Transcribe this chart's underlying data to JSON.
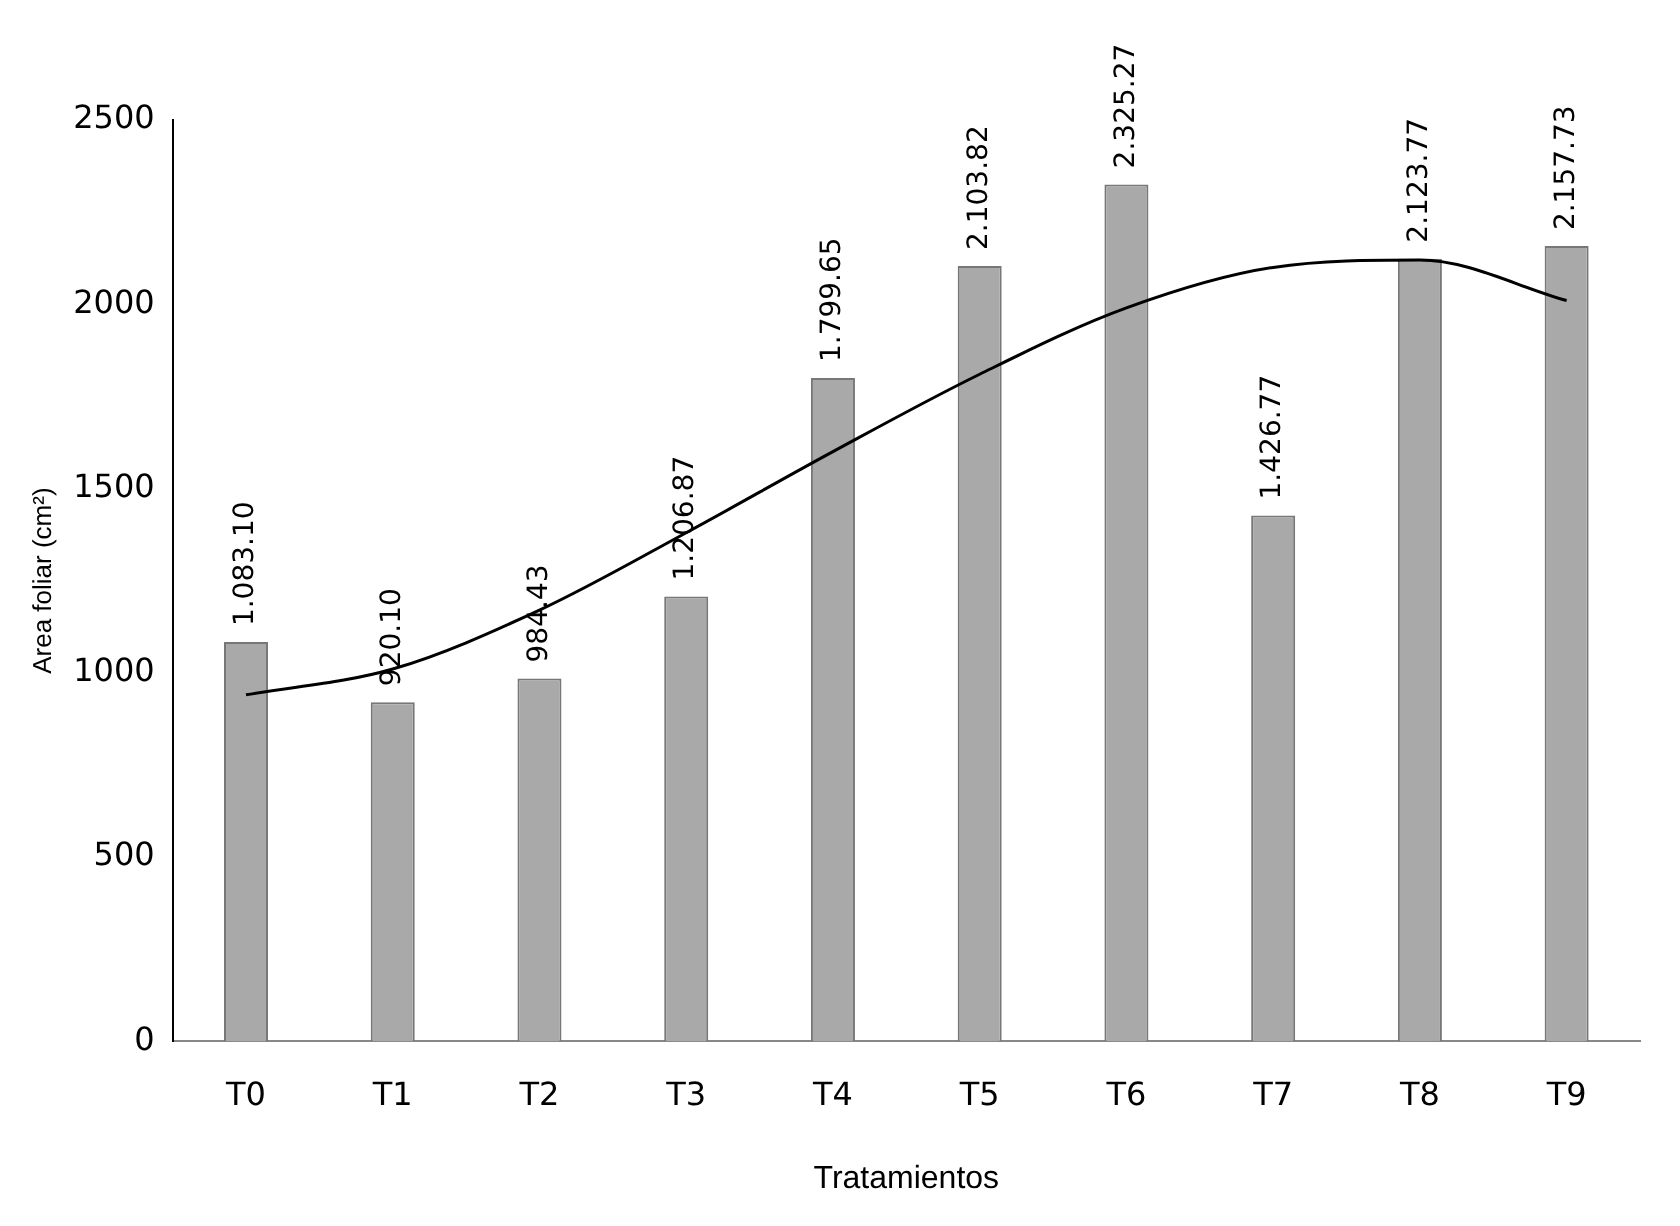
{
  "chart_data": {
    "type": "bar",
    "xlabel": "Tratamientos",
    "ylabel": "Area foliar (cm²)",
    "categories": [
      "T0",
      "T1",
      "T2",
      "T3",
      "T4",
      "T5",
      "T6",
      "T7",
      "T8",
      "T9"
    ],
    "series": [
      {
        "color": "#a9a9a9",
        "values": [
          1083.1,
          920.1,
          984.43,
          1206.87,
          1799.65,
          2103.82,
          2325.27,
          1426.77,
          2123.77,
          2157.73
        ],
        "value_labels": [
          "1.083.10",
          "920.10",
          "984.43",
          "1.206.87",
          "1.799.65",
          "2.103.82",
          "2.325.27",
          "1.426.77",
          "2.123.77",
          "2.157.73"
        ]
      },
      {
        "type": "line",
        "color": "#000000",
        "marker": "none",
        "values": [
          940,
          1010,
          1170,
          1380,
          1600,
          1810,
          1990,
          2100,
          2120,
          2010
        ]
      }
    ],
    "ylim": [
      0,
      2500
    ],
    "yticks": [
      0,
      500,
      1000,
      1500,
      2000,
      2500
    ],
    "grid": false,
    "legend": false
  }
}
